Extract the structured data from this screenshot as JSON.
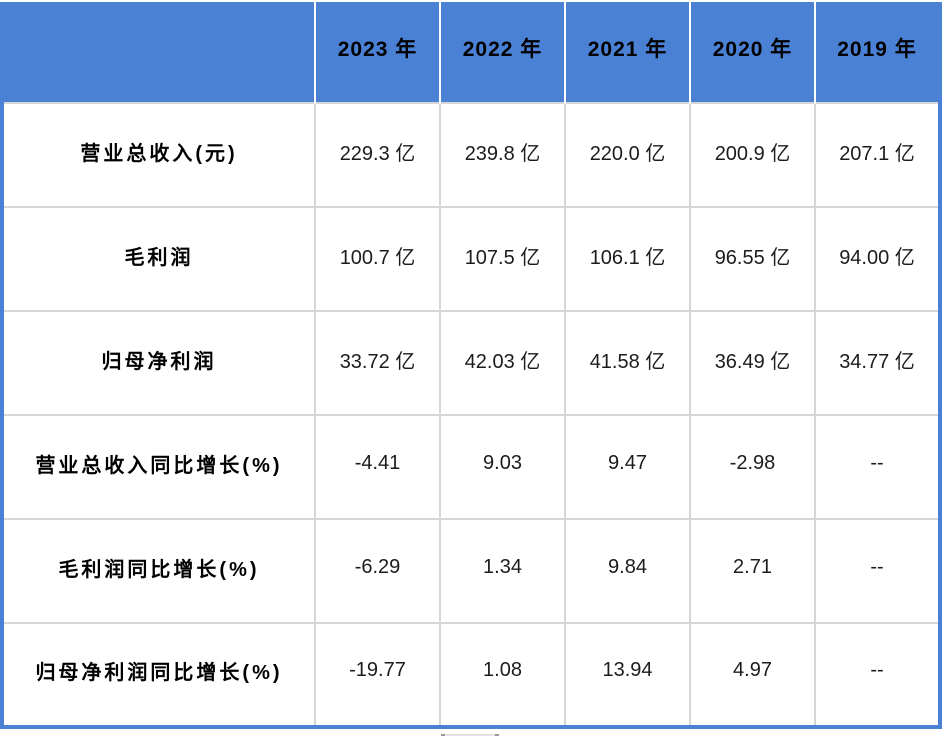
{
  "colors": {
    "header_bg": "#4A81D4",
    "outer_border": "#4A81D4",
    "grid_line": "#D6D6D6",
    "header_separator": "#FFFFFF",
    "header_text": "#000000",
    "label_text": "#000000",
    "value_text": "#1C1C1C"
  },
  "chart_data": {
    "type": "table",
    "title": "",
    "columns": [
      "",
      "2023 年",
      "2022 年",
      "2021 年",
      "2020 年",
      "2019 年"
    ],
    "rows": [
      {
        "label": "营业总收入(元)",
        "values": [
          "229.3 亿",
          "239.8 亿",
          "220.0 亿",
          "200.9 亿",
          "207.1 亿"
        ]
      },
      {
        "label": "毛利润",
        "values": [
          "100.7 亿",
          "107.5 亿",
          "106.1 亿",
          "96.55 亿",
          "94.00 亿"
        ]
      },
      {
        "label": "归母净利润",
        "values": [
          "33.72 亿",
          "42.03 亿",
          "41.58 亿",
          "36.49 亿",
          "34.77 亿"
        ]
      },
      {
        "label": "营业总收入同比增长(%)",
        "values": [
          "-4.41",
          "9.03",
          "9.47",
          "-2.98",
          "--"
        ]
      },
      {
        "label": "毛利润同比增长(%)",
        "values": [
          "-6.29",
          "1.34",
          "9.84",
          "2.71",
          "--"
        ]
      },
      {
        "label": "归母净利润同比增长(%)",
        "values": [
          "-19.77",
          "1.08",
          "13.94",
          "4.97",
          "--"
        ]
      }
    ]
  }
}
